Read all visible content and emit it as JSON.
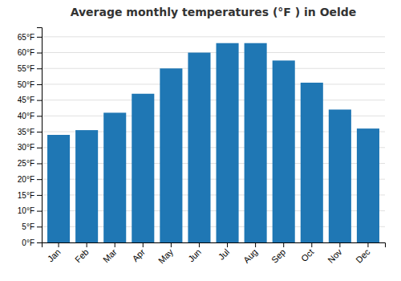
{
  "chart_data": {
    "type": "bar",
    "title": "Average monthly temperatures (°F ) in Oelde",
    "categories": [
      "Jan",
      "Feb",
      "Mar",
      "Apr",
      "May",
      "Jun",
      "Jul",
      "Aug",
      "Sep",
      "Oct",
      "Nov",
      "Dec"
    ],
    "values": [
      34,
      35.5,
      41,
      47,
      55,
      60,
      63,
      63,
      57.5,
      50.5,
      42,
      36
    ],
    "ylim": [
      0,
      68
    ],
    "yticks": [
      {
        "value": 0,
        "label": "0°F"
      },
      {
        "value": 5,
        "label": "5°F"
      },
      {
        "value": 10,
        "label": "10°F"
      },
      {
        "value": 15,
        "label": "15°F"
      },
      {
        "value": 20,
        "label": "20°F"
      },
      {
        "value": 25,
        "label": "25°F"
      },
      {
        "value": 30,
        "label": "30°F"
      },
      {
        "value": 35,
        "label": "35°F"
      },
      {
        "value": 40,
        "label": "40°F"
      },
      {
        "value": 45,
        "label": "45°F"
      },
      {
        "value": 50,
        "label": "50°F"
      },
      {
        "value": 55,
        "label": "55°F"
      },
      {
        "value": 60,
        "label": "60°F"
      },
      {
        "value": 65,
        "label": "65°F"
      }
    ],
    "grid": true
  }
}
